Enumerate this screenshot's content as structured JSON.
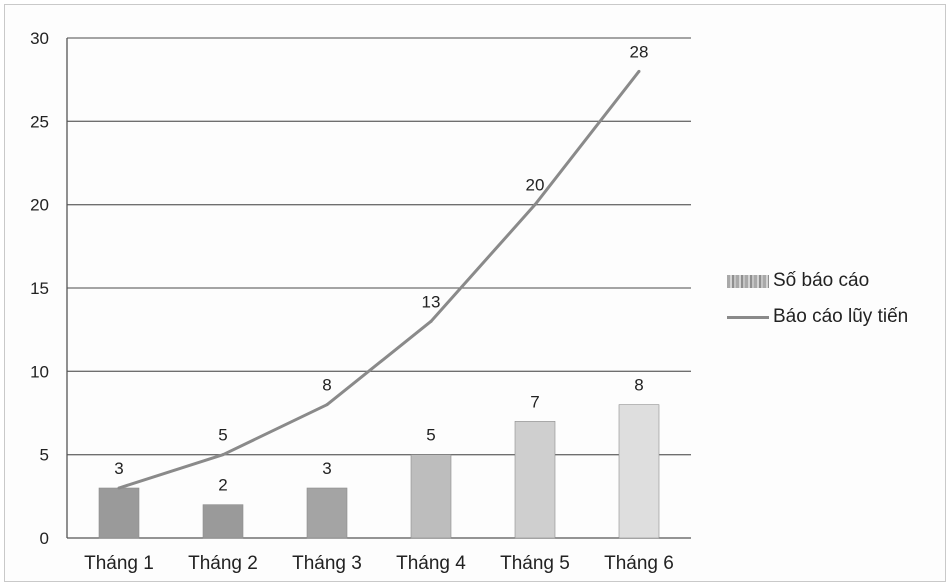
{
  "chart_data": {
    "type": "bar",
    "categories": [
      "Tháng 1",
      "Tháng 2",
      "Tháng 3",
      "Tháng 4",
      "Tháng 5",
      "Tháng 6"
    ],
    "series": [
      {
        "name": "Số báo cáo",
        "type": "bar",
        "values": [
          3,
          2,
          3,
          5,
          7,
          8
        ],
        "colors": [
          "#9a9a9a",
          "#9a9a9a",
          "#a4a4a4",
          "#bdbdbd",
          "#cfcfcf",
          "#dedede"
        ]
      },
      {
        "name": "Báo cáo lũy tiến",
        "type": "line",
        "values": [
          3,
          5,
          8,
          13,
          20,
          28
        ],
        "color": "#8a8a8a"
      }
    ],
    "yticks": [
      0,
      5,
      10,
      15,
      20,
      25,
      30
    ],
    "ylim": [
      0,
      30
    ],
    "grid": true,
    "legend": "right"
  }
}
